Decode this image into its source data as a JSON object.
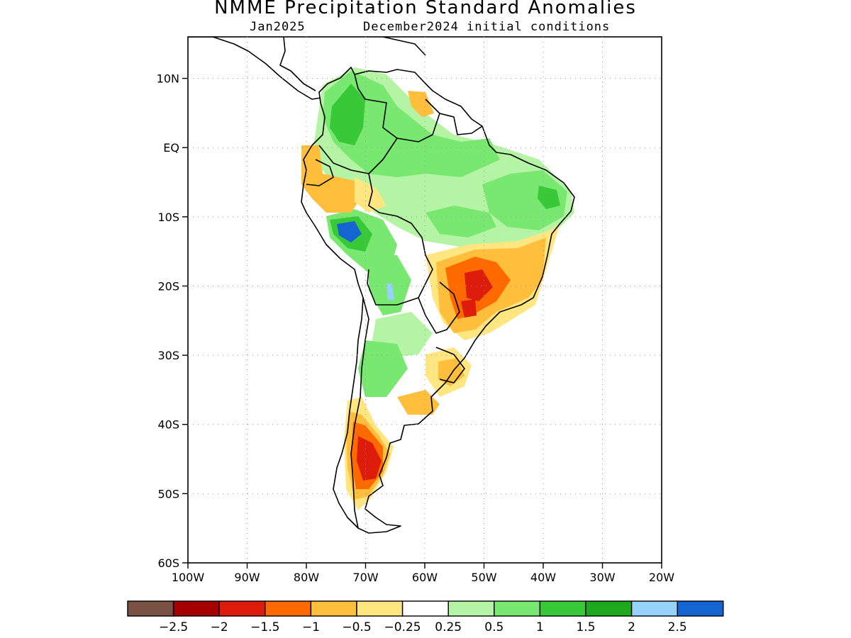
{
  "title": "NMME Precipitation Standard Anomalies",
  "subtitle": {
    "month": "Jan2025",
    "initial_conditions": "December2024 initial conditions"
  },
  "map": {
    "lat_labels": [
      "10N",
      "EQ",
      "10S",
      "20S",
      "30S",
      "40S",
      "50S",
      "60S"
    ],
    "lon_labels": [
      "100W",
      "90W",
      "80W",
      "70W",
      "60W",
      "50W",
      "40W",
      "30W",
      "20W"
    ],
    "lon_range": [
      -100,
      -20
    ],
    "lat_range": [
      -60,
      16
    ]
  },
  "colorbar": {
    "colors": [
      "#7a5244",
      "#a50000",
      "#dd1c0c",
      "#ff6a00",
      "#ffbe3c",
      "#ffe680",
      "#ffffff",
      "#b4f4a4",
      "#78e870",
      "#38c838",
      "#1ea81e",
      "#96d2fa",
      "#1464d2"
    ],
    "labels": [
      "−2.5",
      "−2",
      "−1.5",
      "−1",
      "−0.5",
      "−0.25",
      "0.25",
      "0.5",
      "1",
      "1.5",
      "2",
      "2.5"
    ]
  },
  "anomaly_regions": [
    {
      "name": "colombia-venezuela-wet",
      "level": "1"
    },
    {
      "name": "amazon-wet",
      "level": "0.5"
    },
    {
      "name": "northeast-brazil-wet",
      "level": "1"
    },
    {
      "name": "peru-wet-core",
      "level": "2.5"
    },
    {
      "name": "ecuador-peru-dry",
      "level": "-0.5"
    },
    {
      "name": "southeast-brazil-dry",
      "level": "-1"
    },
    {
      "name": "southeast-brazil-dry-core",
      "level": "-1.5"
    },
    {
      "name": "uruguay-dry",
      "level": "-0.5"
    },
    {
      "name": "patagonia-dry",
      "level": "-1"
    },
    {
      "name": "patagonia-dry-core",
      "level": "-1.5"
    }
  ]
}
